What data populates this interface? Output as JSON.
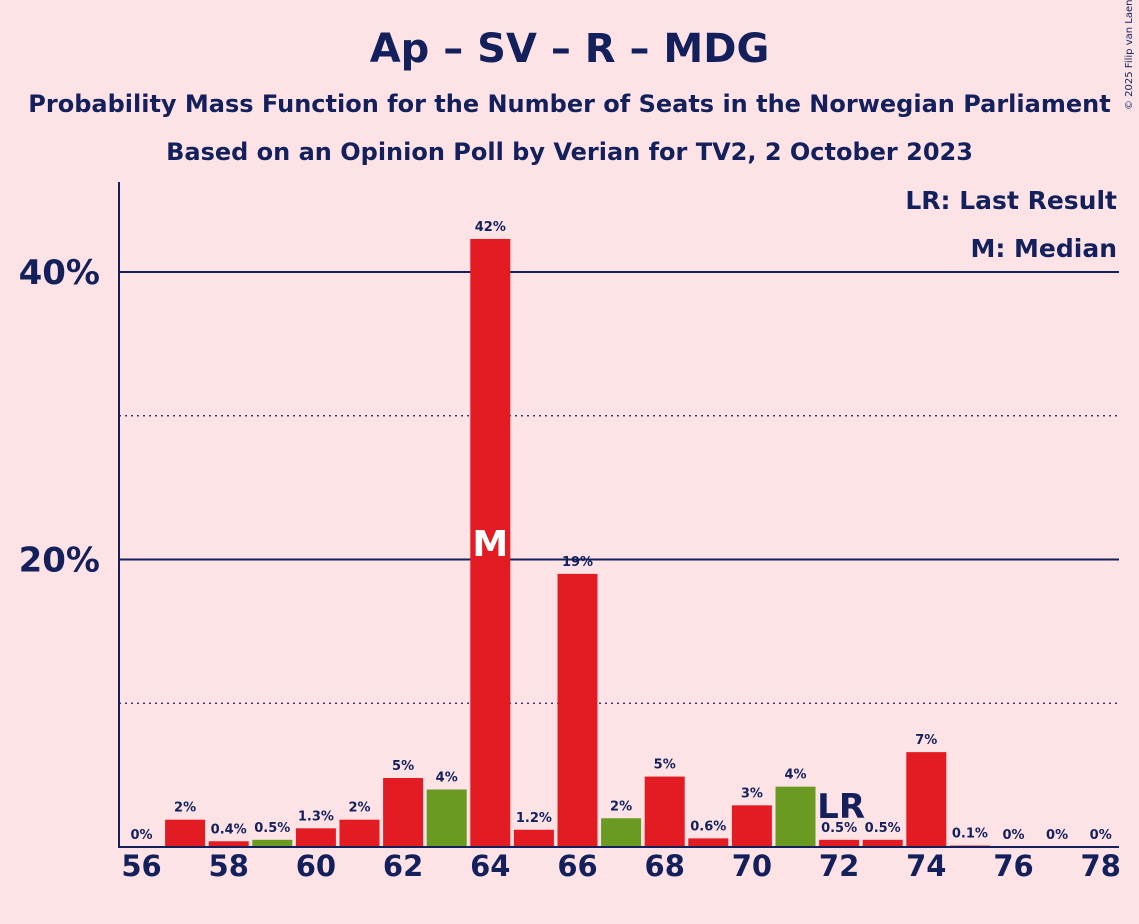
{
  "title": "Ap – SV – R – MDG",
  "subtitle": "Probability Mass Function for the Number of Seats in the Norwegian Parliament",
  "subtitle2": "Based on an Opinion Poll by Verian for TV2, 2 October 2023",
  "copyright": "© 2025 Filip van Laenen",
  "legend": {
    "last_result": "LR: Last Result",
    "median": "M: Median"
  },
  "colors": {
    "background": "#fde3e5",
    "bar": "#e31b23",
    "last_result_bar": "#6a9a22",
    "axis": "#13205c"
  },
  "chart_data": {
    "type": "bar",
    "x": [
      56,
      57,
      58,
      59,
      60,
      61,
      62,
      63,
      64,
      65,
      66,
      67,
      68,
      69,
      70,
      71,
      72,
      73,
      74,
      75,
      76,
      77,
      78
    ],
    "values": [
      0,
      1.9,
      0.4,
      0.5,
      1.3,
      1.9,
      4.8,
      4.0,
      42.3,
      1.2,
      19.0,
      2.0,
      4.9,
      0.6,
      2.9,
      4.2,
      0.5,
      0.5,
      6.6,
      0.1,
      0,
      0,
      0
    ],
    "labels": [
      "0%",
      "2%",
      "0.4%",
      "0.5%",
      "1.3%",
      "2%",
      "5%",
      "4%",
      "42%",
      "1.2%",
      "19%",
      "2%",
      "5%",
      "0.6%",
      "3%",
      "4%",
      "0.5%",
      "0.5%",
      "7%",
      "0.1%",
      "0%",
      "0%",
      "0%"
    ],
    "green": [
      59,
      63,
      67,
      71
    ],
    "median": 64,
    "median_label": "M",
    "last_result": 72,
    "last_result_label": "LR",
    "xticks": [
      "56",
      "58",
      "60",
      "62",
      "64",
      "66",
      "68",
      "70",
      "72",
      "74",
      "76",
      "78"
    ],
    "yticks": [
      {
        "value": 20,
        "label": "20%"
      },
      {
        "value": 40,
        "label": "40%"
      }
    ],
    "minor_grid": [
      10,
      30
    ],
    "ylim": [
      0,
      46.2
    ]
  }
}
